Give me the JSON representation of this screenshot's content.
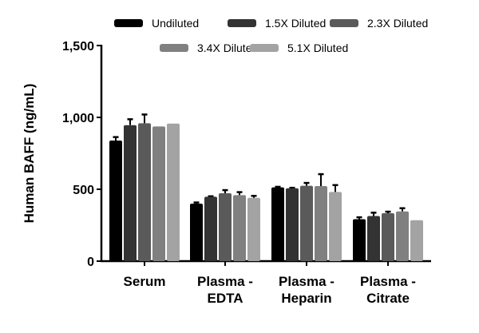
{
  "chart_data": {
    "type": "bar",
    "title": "",
    "xlabel": "",
    "ylabel": "Human BAFF (ng/mL)",
    "ylim": [
      0,
      1500
    ],
    "yticks": [
      0,
      500,
      1000,
      1500
    ],
    "ytick_labels": [
      "0",
      "500",
      "1,000",
      "1,500"
    ],
    "grid": false,
    "legend_position": "top",
    "categories": [
      [
        "Serum"
      ],
      [
        "Plasma -",
        "EDTA"
      ],
      [
        "Plasma -",
        "Heparin"
      ],
      [
        "Plasma -",
        "Citrate"
      ]
    ],
    "series": [
      {
        "name": "Undiluted",
        "color": "#000000",
        "values": [
          839,
          400,
          513,
          292
        ],
        "errors": [
          24,
          8,
          4,
          13
        ]
      },
      {
        "name": "1.5X Diluted",
        "color": "#333333",
        "values": [
          946,
          448,
          507,
          314
        ],
        "errors": [
          41,
          3,
          3,
          23
        ]
      },
      {
        "name": "2.3X Diluted",
        "color": "#5a5a5a",
        "values": [
          959,
          472,
          524,
          333
        ],
        "errors": [
          61,
          22,
          20,
          11
        ]
      },
      {
        "name": "3.4X Diluted",
        "color": "#808080",
        "values": [
          937,
          459,
          522,
          346
        ],
        "errors": [
          0,
          21,
          83,
          22
        ]
      },
      {
        "name": "5.1X Diluted",
        "color": "#a3a3a3",
        "values": [
          957,
          440,
          481,
          285
        ],
        "errors": [
          0,
          14,
          48,
          0
        ]
      }
    ]
  }
}
